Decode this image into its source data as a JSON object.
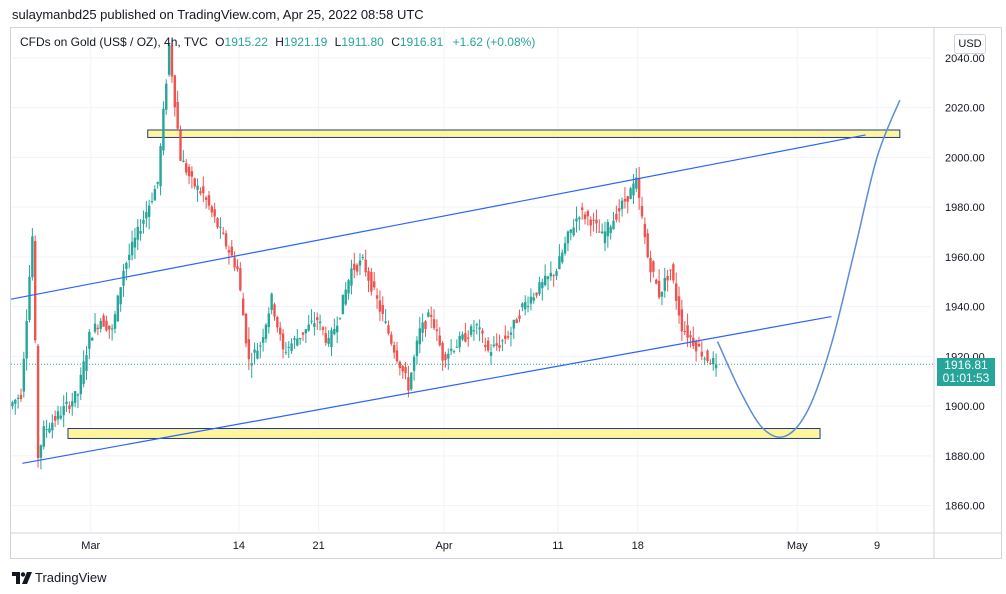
{
  "header": {
    "publish_line": "sulaymanbd25 published on TradingView.com, Apr 25, 2022 08:58 UTC"
  },
  "legend": {
    "symbol": "CFDs on Gold (US$ / OZ), 4h, TVC",
    "open_key": "O",
    "open": "1915.22",
    "high_key": "H",
    "high": "1921.19",
    "low_key": "L",
    "low": "1911.80",
    "close_key": "C",
    "close": "1916.81",
    "change": "+1.62 (+0.08%)"
  },
  "currency_button": "USD",
  "price_tag": {
    "price": "1916.81",
    "countdown": "01:01:53"
  },
  "footer": {
    "brand": "TradingView"
  },
  "colors": {
    "up": "#26a69a",
    "down": "#ef5350",
    "trend": "#2962ff",
    "zone_fill": "#fff59d",
    "zone_border": "#1e3a8a",
    "curve": "#5b8dd6"
  },
  "chart_data": {
    "type": "candlestick",
    "timeframe": "4h",
    "y_axis": {
      "ticks": [
        1860,
        1880,
        1900,
        1920,
        1940,
        1960,
        1980,
        2000,
        2020,
        2040
      ],
      "tick_labels": [
        "1860.00",
        "1880.00",
        "1900.00",
        "1920.00",
        "1940.00",
        "1960.00",
        "1980.00",
        "2000.00",
        "2020.00",
        "2040.00"
      ],
      "range": [
        1849,
        2052
      ]
    },
    "x_axis": {
      "ticks": [
        {
          "label": "Mar",
          "date": "2022-03-01"
        },
        {
          "label": "14",
          "date": "2022-03-14"
        },
        {
          "label": "21",
          "date": "2022-03-21"
        },
        {
          "label": "Apr",
          "date": "2022-04-01"
        },
        {
          "label": "11",
          "date": "2022-04-11"
        },
        {
          "label": "18",
          "date": "2022-04-18"
        },
        {
          "label": "May",
          "date": "2022-05-02"
        },
        {
          "label": "9",
          "date": "2022-05-09"
        }
      ],
      "range": [
        "2022-02-22",
        "2022-05-14"
      ]
    },
    "price_path": [
      [
        "2022-02-22",
        1900
      ],
      [
        "2022-02-23",
        1905
      ],
      [
        "2022-02-24",
        1968
      ],
      [
        "2022-02-24T12",
        1880
      ],
      [
        "2022-02-25",
        1890
      ],
      [
        "2022-02-28",
        1905
      ],
      [
        "2022-03-01",
        1928
      ],
      [
        "2022-03-02",
        1935
      ],
      [
        "2022-03-03",
        1930
      ],
      [
        "2022-03-04",
        1955
      ],
      [
        "2022-03-07",
        1990
      ],
      [
        "2022-03-08",
        2045
      ],
      [
        "2022-03-09",
        2000
      ],
      [
        "2022-03-10",
        1990
      ],
      [
        "2022-03-11",
        1985
      ],
      [
        "2022-03-14",
        1955
      ],
      [
        "2022-03-15",
        1918
      ],
      [
        "2022-03-16",
        1925
      ],
      [
        "2022-03-17",
        1943
      ],
      [
        "2022-03-18",
        1922
      ],
      [
        "2022-03-21",
        1935
      ],
      [
        "2022-03-22",
        1925
      ],
      [
        "2022-03-23",
        1938
      ],
      [
        "2022-03-24",
        1955
      ],
      [
        "2022-03-25",
        1958
      ],
      [
        "2022-03-28",
        1920
      ],
      [
        "2022-03-29",
        1908
      ],
      [
        "2022-03-30",
        1930
      ],
      [
        "2022-03-31",
        1937
      ],
      [
        "2022-04-01",
        1920
      ],
      [
        "2022-04-04",
        1932
      ],
      [
        "2022-04-05",
        1922
      ],
      [
        "2022-04-06",
        1925
      ],
      [
        "2022-04-07",
        1930
      ],
      [
        "2022-04-08",
        1940
      ],
      [
        "2022-04-11",
        1955
      ],
      [
        "2022-04-12",
        1968
      ],
      [
        "2022-04-13",
        1978
      ],
      [
        "2022-04-14",
        1975
      ],
      [
        "2022-04-15",
        1968
      ],
      [
        "2022-04-18",
        1990
      ],
      [
        "2022-04-19",
        1960
      ],
      [
        "2022-04-20",
        1945
      ],
      [
        "2022-04-21",
        1955
      ],
      [
        "2022-04-22",
        1932
      ],
      [
        "2022-04-24",
        1920
      ],
      [
        "2022-04-25",
        1916.81
      ]
    ],
    "zones": [
      {
        "from": "2022-03-06",
        "to": "2022-05-11",
        "low": 2008,
        "high": 2011
      },
      {
        "from": "2022-02-27",
        "to": "2022-05-04",
        "low": 1887,
        "high": 1891
      }
    ],
    "trendlines": [
      {
        "from": [
          "2022-02-22",
          1943
        ],
        "to": [
          "2022-05-08",
          2009
        ]
      },
      {
        "from": [
          "2022-02-23",
          1877
        ],
        "to": [
          "2022-05-05",
          1936
        ]
      }
    ],
    "projection": [
      [
        "2022-04-25",
        1926
      ],
      [
        "2022-04-27",
        1906
      ],
      [
        "2022-04-29",
        1891
      ],
      [
        "2022-05-01",
        1888
      ],
      [
        "2022-05-03",
        1899
      ],
      [
        "2022-05-05",
        1925
      ],
      [
        "2022-05-07",
        1962
      ],
      [
        "2022-05-09",
        2000
      ],
      [
        "2022-05-11",
        2023
      ]
    ],
    "last_price": 1916.81,
    "last_price_dotted_line": true,
    "grid": true
  }
}
